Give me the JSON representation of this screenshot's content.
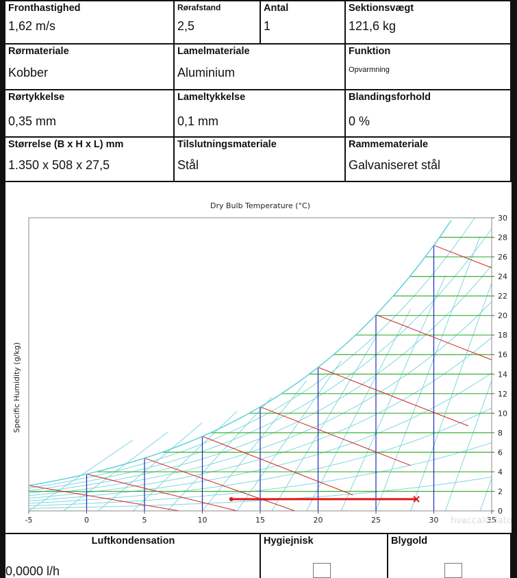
{
  "specs": [
    [
      {
        "label": "Fronthastighed",
        "value": "1,62 m/s"
      },
      {
        "label": "Rørafstand",
        "value": "2,5"
      },
      {
        "label": "Antal",
        "value": "1"
      },
      {
        "label": "Sektionsvægt",
        "value": "121,6 kg"
      }
    ],
    [
      {
        "label": "Rørmateriale",
        "value": "Kobber"
      },
      {
        "label": "Lamelmateriale",
        "value": "Aluminium"
      },
      {
        "label": "Funktion",
        "value": "Opvarmning"
      }
    ],
    [
      {
        "label": "Rørtykkelse",
        "value": "0,35 mm"
      },
      {
        "label": "Lameltykkelse",
        "value": "0,1 mm"
      },
      {
        "label": "Blandingsforhold",
        "value": "0 %"
      }
    ],
    [
      {
        "label": "Størrelse (B x H x L) mm",
        "value": "1.350 x 508 x 27,5"
      },
      {
        "label": "Tilslutningsmateriale",
        "value": "Stål"
      },
      {
        "label": "Rammemateriale",
        "value": "Galvaniseret stål"
      }
    ]
  ],
  "chart_data": {
    "type": "line",
    "title": "Dry Bulb Temperature (°C)",
    "xlabel": "",
    "ylabel": "Specific Humidity (g/kg)",
    "watermark": "hvaccalculator.net",
    "xlim": [
      -5,
      35
    ],
    "ylim": [
      0,
      30
    ],
    "x_ticks": [
      -5,
      0,
      5,
      10,
      15,
      20,
      25,
      30,
      35
    ],
    "y_ticks": [
      0,
      2,
      4,
      6,
      8,
      10,
      12,
      14,
      16,
      18,
      20,
      22,
      24,
      26,
      28,
      30
    ],
    "grid": false,
    "colors": {
      "saturation": "#5fd0dc",
      "rh_lines": "#7fd6e0",
      "humidity_lines": "#3cb030",
      "temperature_lines": "#1a2ab8",
      "enthalpy_lines": "#d42020",
      "process": "#e01818"
    },
    "process_line": {
      "start": {
        "x": 12.5,
        "y": 1.2
      },
      "end": {
        "x": 28.5,
        "y": 1.2
      }
    }
  },
  "bottom": {
    "kondens_label": "Luftkondensation",
    "kondens_value": "0,0000 l/h",
    "hygiejnisk_label": "Hygiejnisk",
    "blygold_label": "Blygold"
  }
}
